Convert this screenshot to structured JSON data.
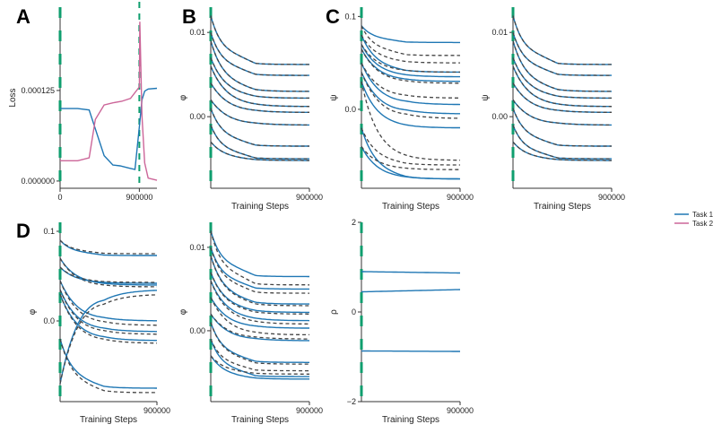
{
  "colors": {
    "task1": "#1f77b4",
    "task2": "#cc6699",
    "teacher": "#444444",
    "switch": "#0f9e6e",
    "axis": "#333333"
  },
  "legend": {
    "task1": "Task 1",
    "task2": "Task 2"
  },
  "chart_data": [
    {
      "panel": "A",
      "type": "line",
      "ylabel": "Loss",
      "xticks": [
        "0",
        "900000"
      ],
      "yticks": [
        "0.000000",
        "0.000125"
      ],
      "ylim": [
        -1e-05,
        0.00024
      ],
      "xlim": [
        0,
        1100000
      ],
      "series": [
        {
          "name": "Task 1",
          "x": [
            0,
            200000,
            330000,
            500000,
            600000,
            680000,
            780000,
            850000,
            900000,
            930000,
            960000,
            1000000,
            1100000
          ],
          "y": [
            0.0001,
            0.0001,
            9.8e-05,
            3.5e-05,
            2.2e-05,
            2.1e-05,
            1.8e-05,
            1.6e-05,
            7.5e-05,
            0.000112,
            0.000124,
            0.000127,
            0.000128
          ]
        },
        {
          "name": "Task 2",
          "x": [
            0,
            200000,
            330000,
            400000,
            500000,
            600000,
            700000,
            800000,
            900000,
            905000,
            930000,
            960000,
            1000000,
            1100000
          ],
          "y": [
            2.8e-05,
            2.8e-05,
            3.2e-05,
            8.5e-05,
            0.000105,
            0.000108,
            0.00011,
            0.000114,
            0.00013,
            0.00022,
            9e-05,
            2.5e-05,
            4e-06,
            1e-06
          ]
        }
      ]
    },
    {
      "panel": "B",
      "type": "line",
      "ylabel": "φ",
      "xticks": [
        "900000"
      ],
      "yticks": [
        "0.00",
        "0.01"
      ],
      "xlabel": "Training Steps",
      "ylim": [
        -0.0085,
        0.013
      ],
      "xlim": [
        0,
        900000
      ],
      "series": [
        {
          "y0": 0.012,
          "end": 0.0062,
          "k": 0.9
        },
        {
          "y0": 0.01,
          "end": 0.0049,
          "k": 0.85
        },
        {
          "y0": 0.009,
          "end": 0.003,
          "k": 0.7
        },
        {
          "y0": 0.007,
          "end": 0.0022,
          "k": 0.6
        },
        {
          "y0": 0.006,
          "end": 0.0012,
          "k": 0.5
        },
        {
          "y0": 0.004,
          "end": 0.0005,
          "k": 0.45
        },
        {
          "y0": 0.002,
          "end": -0.001,
          "k": 0.4
        },
        {
          "y0": 0.001,
          "end": -0.0035,
          "k": 0.8
        },
        {
          "y0": -0.001,
          "end": -0.005,
          "k": 0.85
        },
        {
          "y0": -0.003,
          "end": -0.0052,
          "k": 0.6
        }
      ]
    },
    {
      "panel": "C",
      "type": "line",
      "ylabel": "ψ",
      "xticks": [
        "900000"
      ],
      "yticks": [
        "0.0",
        "0.1"
      ],
      "xlabel": "Training Steps",
      "ylim": [
        -0.085,
        0.11
      ],
      "xlim": [
        0,
        900000
      ],
      "series": [
        {
          "y0": 0.09,
          "end": 0.072,
          "teacher": 0.058,
          "k": 0.8
        },
        {
          "y0": 0.08,
          "end": 0.04,
          "teacher": 0.05,
          "k": 0.6
        },
        {
          "y0": 0.07,
          "end": 0.035,
          "teacher": 0.04,
          "k": 0.5
        },
        {
          "y0": 0.065,
          "end": 0.03,
          "teacher": 0.028,
          "k": 0.45
        },
        {
          "y0": 0.05,
          "end": 0.005,
          "teacher": 0.012,
          "k": 0.4
        },
        {
          "y0": 0.04,
          "end": -0.005,
          "teacher": -0.01,
          "k": 0.35
        },
        {
          "y0": 0.03,
          "end": -0.02,
          "teacher": -0.055,
          "k": 0.5
        },
        {
          "y0": -0.02,
          "end": -0.075,
          "teacher": -0.06,
          "k": 0.6
        },
        {
          "y0": -0.04,
          "end": -0.075,
          "teacher": -0.065,
          "k": 0.5
        }
      ]
    },
    {
      "panel": "C2",
      "type": "line",
      "ylabel": "ψ",
      "xticks": [
        "900000"
      ],
      "yticks": [
        "0.00",
        "0.01"
      ],
      "xlabel": "Training Steps",
      "ylim": [
        -0.0085,
        0.013
      ],
      "xlim": [
        0,
        900000
      ],
      "series": [
        {
          "y0": 0.012,
          "end": 0.0062,
          "k": 0.9
        },
        {
          "y0": 0.01,
          "end": 0.0049,
          "k": 0.85
        },
        {
          "y0": 0.009,
          "end": 0.003,
          "k": 0.7
        },
        {
          "y0": 0.007,
          "end": 0.0022,
          "k": 0.6
        },
        {
          "y0": 0.006,
          "end": 0.0012,
          "k": 0.5
        },
        {
          "y0": 0.004,
          "end": 0.0005,
          "k": 0.45
        },
        {
          "y0": 0.002,
          "end": -0.001,
          "k": 0.4
        },
        {
          "y0": 0.001,
          "end": -0.0035,
          "k": 0.8
        },
        {
          "y0": -0.001,
          "end": -0.005,
          "k": 0.85
        },
        {
          "y0": -0.003,
          "end": -0.0052,
          "k": 0.6
        }
      ]
    },
    {
      "panel": "D",
      "type": "line",
      "ylabel": "φ",
      "xticks": [
        "900000"
      ],
      "yticks": [
        "0.0",
        "0.1"
      ],
      "xlabel": "Training Steps",
      "ylim": [
        -0.09,
        0.11
      ],
      "xlim": [
        0,
        900000
      ],
      "series": [
        {
          "y0": 0.09,
          "end": 0.073,
          "teacher": 0.075,
          "k": 0.8
        },
        {
          "y0": 0.07,
          "end": 0.04,
          "teacher": 0.038,
          "k": 0.5
        },
        {
          "y0": 0.06,
          "end": 0.042,
          "teacher": 0.043,
          "k": 0.55
        },
        {
          "y0": 0.045,
          "end": 0.0,
          "teacher": -0.005,
          "k": 0.4
        },
        {
          "y0": 0.035,
          "end": -0.012,
          "teacher": -0.015,
          "k": 0.4
        },
        {
          "y0": 0.03,
          "end": -0.022,
          "teacher": -0.025,
          "k": 0.4
        },
        {
          "y0": -0.02,
          "end": -0.075,
          "teacher": -0.08,
          "k": 0.7
        },
        {
          "y0": -0.07,
          "end": 0.035,
          "teacher": 0.03,
          "k": 0.3
        }
      ]
    },
    {
      "panel": "D2",
      "type": "line",
      "ylabel": "φ",
      "xticks": [
        "900000"
      ],
      "yticks": [
        "0.00",
        "0.01"
      ],
      "xlabel": "Training Steps",
      "ylim": [
        -0.0085,
        0.013
      ],
      "xlim": [
        0,
        900000
      ],
      "series": [
        {
          "y0": 0.012,
          "end": 0.0065,
          "teacher": 0.0055,
          "k": 0.9
        },
        {
          "y0": 0.01,
          "end": 0.005,
          "teacher": 0.0045,
          "k": 0.85
        },
        {
          "y0": 0.009,
          "end": 0.0032,
          "teacher": 0.003,
          "k": 0.7
        },
        {
          "y0": 0.007,
          "end": 0.0022,
          "teacher": 0.002,
          "k": 0.6
        },
        {
          "y0": 0.006,
          "end": 0.0012,
          "teacher": 0.0008,
          "k": 0.5
        },
        {
          "y0": 0.004,
          "end": 0.0003,
          "teacher": -0.0005,
          "k": 0.45
        },
        {
          "y0": 0.002,
          "end": -0.0012,
          "teacher": -0.001,
          "k": 0.4
        },
        {
          "y0": 0.001,
          "end": -0.0038,
          "teacher": -0.004,
          "k": 0.8
        },
        {
          "y0": -0.001,
          "end": -0.0055,
          "teacher": -0.0048,
          "k": 0.85
        },
        {
          "y0": -0.003,
          "end": -0.0058,
          "teacher": -0.0052,
          "k": 0.6
        }
      ]
    },
    {
      "panel": "D3",
      "type": "line",
      "ylabel": "ρ",
      "xticks": [
        "900000"
      ],
      "yticks": [
        "−2",
        "0",
        "2"
      ],
      "xlabel": "Training Steps",
      "ylim": [
        -2,
        2
      ],
      "xlim": [
        0,
        900000
      ],
      "series": [
        {
          "y0": 0.9,
          "end": 0.87
        },
        {
          "y0": 0.45,
          "end": 0.5
        },
        {
          "y0": -0.87,
          "end": -0.88
        }
      ]
    }
  ],
  "panel_letters": {
    "A": "A",
    "B": "B",
    "C": "C",
    "D": "D"
  }
}
